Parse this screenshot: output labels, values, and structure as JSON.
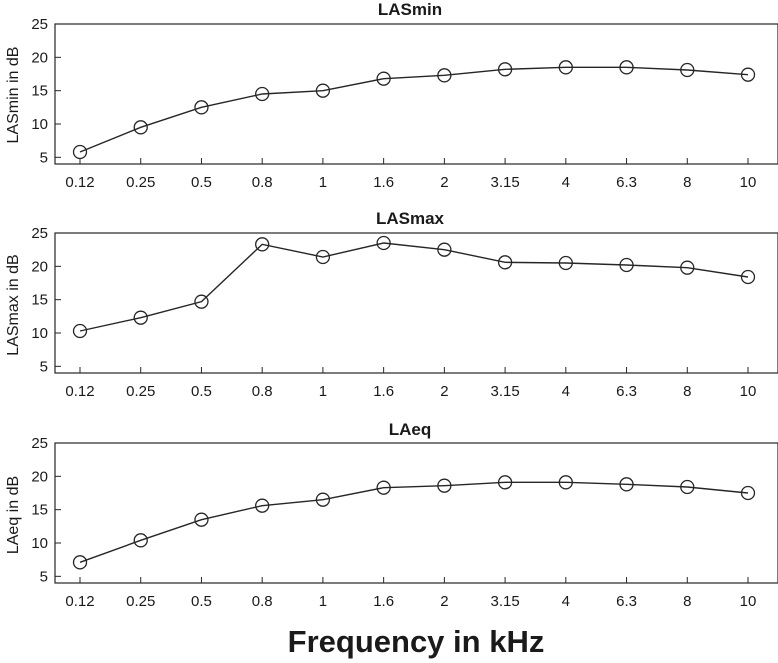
{
  "figure": {
    "xlabel": "Frequency in kHz",
    "line_color": "#262626",
    "axes_color": "#262626"
  },
  "chart_data": [
    {
      "type": "line",
      "title": "LASmin",
      "ylabel": "LASmin in dB",
      "categories": [
        "0.12",
        "0.25",
        "0.5",
        "0.8",
        "1",
        "1.6",
        "2",
        "3.15",
        "4",
        "6.3",
        "8",
        "10"
      ],
      "yticks": [
        5,
        10,
        15,
        20,
        25
      ],
      "ylim": [
        4,
        25
      ],
      "marker": "circle",
      "grid": false,
      "series": [
        {
          "values": [
            5.8,
            9.5,
            12.5,
            14.5,
            15.0,
            16.8,
            17.3,
            18.2,
            18.5,
            18.5,
            18.1,
            17.4
          ]
        }
      ]
    },
    {
      "type": "line",
      "title": "LASmax",
      "ylabel": "LASmax in dB",
      "categories": [
        "0.12",
        "0.25",
        "0.5",
        "0.8",
        "1",
        "1.6",
        "2",
        "3.15",
        "4",
        "6.3",
        "8",
        "10"
      ],
      "yticks": [
        5,
        10,
        15,
        20,
        25
      ],
      "ylim": [
        4,
        25
      ],
      "marker": "circle",
      "grid": false,
      "series": [
        {
          "values": [
            10.3,
            12.3,
            14.7,
            23.3,
            21.4,
            23.5,
            22.5,
            20.6,
            20.5,
            20.2,
            19.8,
            18.4
          ]
        }
      ]
    },
    {
      "type": "line",
      "title": "LAeq",
      "ylabel": "LAeq in dB",
      "categories": [
        "0.12",
        "0.25",
        "0.5",
        "0.8",
        "1",
        "1.6",
        "2",
        "3.15",
        "4",
        "6.3",
        "8",
        "10"
      ],
      "yticks": [
        5,
        10,
        15,
        20,
        25
      ],
      "ylim": [
        4,
        25
      ],
      "marker": "circle",
      "grid": false,
      "series": [
        {
          "values": [
            7.1,
            10.4,
            13.5,
            15.6,
            16.5,
            18.3,
            18.6,
            19.1,
            19.1,
            18.8,
            18.4,
            17.5
          ]
        }
      ]
    }
  ]
}
